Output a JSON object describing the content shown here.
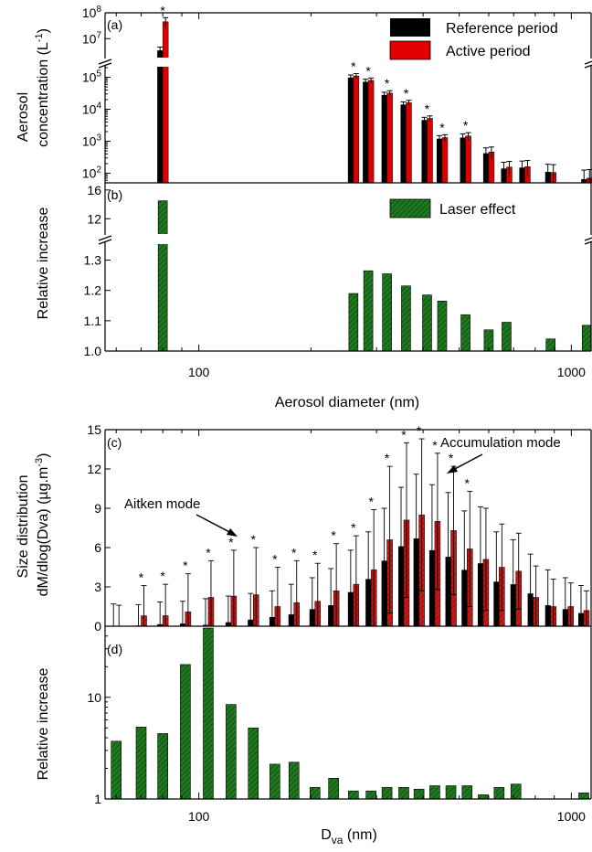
{
  "colors": {
    "reference": "#000000",
    "active": "#e00000",
    "active_dark": "#b02020",
    "laser": "#1f7a1f",
    "laser_hatch": "#0b3d0b"
  },
  "legend_top": {
    "reference": "Reference period",
    "active": "Active period"
  },
  "legend_b": {
    "laser": "Laser effect"
  },
  "axis_labels": {
    "a_ylabel1": "Aerosol",
    "a_ylabel2": "concentration (L",
    "a_ylabel2_sup": "-1",
    "a_ylabel2_end": ")",
    "b_ylabel": "Relative increase",
    "top_xlabel": "Aerosol diameter (nm)",
    "c_ylabel1": "Size distribution",
    "c_ylabel2": "dM/dlog(Dva) (µg.m",
    "c_ylabel2_sup": "-3",
    "c_ylabel2_end": ")",
    "d_ylabel": "Relative increase",
    "bottom_xlabel_main": "D",
    "bottom_xlabel_sub": "va",
    "bottom_xlabel_end": " (nm)"
  },
  "annotations": {
    "aitken": "Aitken mode",
    "accumulation": "Accumulation mode"
  },
  "chart_data": [
    {
      "panel": "(a)",
      "type": "bar",
      "xscale": "log",
      "xlim": [
        56,
        1130
      ],
      "yscale": "log (broken axis)",
      "ylim_lower": [
        50,
        200000
      ],
      "ylim_upper": [
        2000000,
        100000000
      ],
      "ytick_labels_lower": [
        "10^2",
        "10^3",
        "10^4",
        "10^5"
      ],
      "ytick_labels_upper": [
        "10^7",
        "10^8"
      ],
      "x": [
        80,
        260,
        285,
        320,
        360,
        410,
        450,
        520,
        600,
        670,
        750,
        880,
        1100
      ],
      "series": [
        {
          "name": "Reference period",
          "values": [
            3500000,
            98000,
            72000,
            28000,
            14000,
            4600,
            1200,
            1300,
            420,
            140,
            150,
            110,
            65
          ],
          "errors": [
            1200000,
            20000,
            15000,
            6000,
            3000,
            1000,
            300,
            400,
            200,
            80,
            90,
            80,
            60
          ]
        },
        {
          "name": "Active period",
          "values": [
            45000000,
            110000,
            80000,
            32000,
            16000,
            5200,
            1300,
            1450,
            460,
            155,
            160,
            105,
            70
          ],
          "errors": [
            20000000,
            20000,
            15000,
            6000,
            3000,
            1000,
            300,
            400,
            200,
            80,
            90,
            80,
            60
          ]
        }
      ],
      "significant": [
        true,
        true,
        true,
        true,
        true,
        true,
        true,
        true,
        false,
        false,
        false,
        false,
        false
      ]
    },
    {
      "panel": "(b)",
      "type": "bar",
      "xscale": "log",
      "xlim": [
        56,
        1130
      ],
      "ylim_lower": [
        1.0,
        1.35
      ],
      "ylim_upper": [
        10,
        17
      ],
      "ytick_labels_lower": [
        "1.0",
        "1.1",
        "1.2",
        "1.3"
      ],
      "ytick_labels_upper": [
        "12",
        "16"
      ],
      "x": [
        80,
        260,
        285,
        320,
        360,
        410,
        450,
        520,
        600,
        670,
        750,
        880,
        1100
      ],
      "series": [
        {
          "name": "Laser effect",
          "values": [
            14.5,
            1.19,
            1.265,
            1.255,
            1.215,
            1.185,
            1.165,
            1.12,
            1.07,
            1.095,
            1.0,
            1.04,
            1.085
          ]
        }
      ],
      "xtick_labels": [
        "100",
        "1000"
      ]
    },
    {
      "panel": "(c)",
      "type": "bar",
      "xscale": "log",
      "xlim": [
        56,
        1130
      ],
      "ylim": [
        0,
        15
      ],
      "ytick_labels": [
        "0",
        "3",
        "6",
        "9",
        "12",
        "15"
      ],
      "x": [
        60,
        70,
        80,
        92,
        106,
        122,
        140,
        160,
        180,
        205,
        230,
        260,
        290,
        320,
        355,
        390,
        430,
        475,
        525,
        580,
        640,
        710,
        790,
        880,
        980,
        1080
      ],
      "series": [
        {
          "name": "Reference period",
          "values": [
            0.0,
            0.05,
            0.15,
            0.2,
            0.1,
            0.3,
            0.5,
            0.7,
            0.9,
            1.3,
            1.6,
            2.6,
            3.6,
            5.0,
            6.1,
            6.7,
            5.8,
            5.3,
            4.3,
            4.8,
            3.4,
            3.2,
            2.5,
            1.6,
            1.3,
            1.0
          ],
          "errors": [
            1.7,
            1.6,
            1.7,
            1.7,
            2.0,
            2.0,
            2.0,
            2.0,
            2.3,
            2.4,
            2.8,
            3.2,
            3.6,
            4.0,
            4.5,
            4.9,
            5.0,
            4.9,
            4.5,
            4.3,
            3.8,
            3.4,
            3.0,
            2.7,
            2.4,
            2.1
          ]
        },
        {
          "name": "Active period",
          "values": [
            0.0,
            0.8,
            0.8,
            1.1,
            2.2,
            2.3,
            2.4,
            1.5,
            1.8,
            1.9,
            2.7,
            3.2,
            4.3,
            6.6,
            8.1,
            8.5,
            8.0,
            7.3,
            5.9,
            5.1,
            4.5,
            4.2,
            2.2,
            1.5,
            1.5,
            1.2
          ],
          "errors": [
            1.6,
            2.3,
            2.4,
            2.9,
            2.8,
            3.5,
            3.6,
            3.0,
            3.2,
            2.9,
            3.6,
            3.7,
            4.6,
            5.6,
            5.9,
            5.8,
            5.2,
            4.9,
            4.4,
            3.9,
            3.3,
            2.9,
            2.4,
            2.1,
            1.8,
            1.5
          ]
        }
      ],
      "significant": [
        false,
        true,
        true,
        true,
        true,
        true,
        true,
        true,
        true,
        true,
        true,
        true,
        true,
        true,
        true,
        true,
        true,
        true,
        true,
        false,
        false,
        false,
        false,
        false,
        false,
        false
      ]
    },
    {
      "panel": "(d)",
      "type": "bar",
      "xscale": "log",
      "xlim": [
        56,
        1130
      ],
      "yscale": "log",
      "ylim": [
        1,
        50
      ],
      "ytick_labels": [
        "1",
        "10"
      ],
      "x": [
        60,
        70,
        80,
        92,
        106,
        122,
        140,
        160,
        180,
        205,
        230,
        260,
        290,
        320,
        355,
        390,
        430,
        475,
        525,
        580,
        640,
        710,
        790,
        880,
        980,
        1080
      ],
      "series": [
        {
          "name": "Laser effect",
          "values": [
            3.7,
            5.1,
            4.4,
            21.0,
            48.0,
            8.5,
            5.0,
            2.2,
            2.3,
            1.3,
            1.6,
            1.2,
            1.2,
            1.3,
            1.3,
            1.25,
            1.35,
            1.35,
            1.35,
            1.1,
            1.3,
            1.4,
            1.0,
            1.0,
            1.0,
            1.15
          ]
        }
      ],
      "xtick_labels": [
        "100",
        "1000"
      ]
    }
  ]
}
